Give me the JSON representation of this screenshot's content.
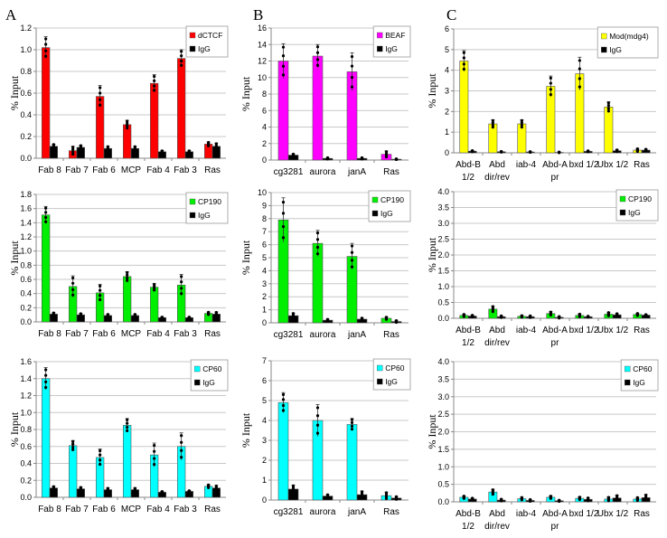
{
  "chart_data": [
    {
      "type": "bar",
      "panel_label": "A",
      "ylabel": "% Input",
      "ylim": [
        0,
        1.2
      ],
      "yticks": [
        "0.0",
        "0.2",
        "0.4",
        "0.6",
        "0.8",
        "1.0",
        "1.2"
      ],
      "categories": [
        "Fab 8",
        "Fab 7",
        "Fab 6",
        "MCP",
        "Fab 4",
        "Fab 3",
        "Ras"
      ],
      "series": [
        {
          "name": "dCTCF",
          "color": "#ff0000",
          "values": [
            1.02,
            0.07,
            0.57,
            0.31,
            0.69,
            0.92,
            0.13
          ],
          "errors": [
            0.1,
            0.04,
            0.1,
            0.04,
            0.08,
            0.08,
            0.02
          ]
        },
        {
          "name": "IgG",
          "color": "#000000",
          "values": [
            0.11,
            0.1,
            0.09,
            0.09,
            0.06,
            0.06,
            0.11
          ],
          "errors": [
            0.02,
            0.02,
            0.02,
            0.02,
            0.01,
            0.01,
            0.03
          ]
        }
      ],
      "legend": "top-right",
      "grid": true
    },
    {
      "type": "bar",
      "panel_label": "B",
      "ylabel": "% Input",
      "ylim": [
        0,
        16
      ],
      "yticks": [
        "0",
        "2",
        "4",
        "6",
        "8",
        "10",
        "12",
        "14",
        "16"
      ],
      "categories": [
        "cg3281",
        "aurora",
        "janA",
        "Ras"
      ],
      "series": [
        {
          "name": "BEAF",
          "color": "#ff00ff",
          "values": [
            12.0,
            12.6,
            10.7,
            0.7
          ],
          "errors": [
            2.1,
            1.4,
            2.3,
            0.4
          ]
        },
        {
          "name": "IgG",
          "color": "#000000",
          "values": [
            0.6,
            0.2,
            0.2,
            0.1
          ],
          "errors": [
            0.15,
            0.1,
            0.1,
            0.05
          ]
        }
      ],
      "legend": "top-right",
      "grid": true
    },
    {
      "type": "bar",
      "panel_label": "C",
      "ylabel": "% Input",
      "ylim": [
        0,
        6
      ],
      "yticks": [
        "0",
        "1",
        "2",
        "3",
        "4",
        "5",
        "6"
      ],
      "categories": [
        "Abd-B\n1/2",
        "Abd\ndir/rev",
        "iab-4",
        "Abd-A\npr",
        "bxd 1/2",
        "Ubx 1/2",
        "Ras"
      ],
      "series": [
        {
          "name": "Mod(mdg4)",
          "color": "#ffff00",
          "values": [
            4.45,
            1.4,
            1.4,
            3.22,
            3.83,
            2.22,
            0.13
          ],
          "errors": [
            0.5,
            0.2,
            0.2,
            0.5,
            0.8,
            0.25,
            0.08
          ]
        },
        {
          "name": "IgG",
          "color": "#000000",
          "values": [
            0.08,
            0.05,
            0.04,
            0.02,
            0.07,
            0.1,
            0.13
          ],
          "errors": [
            0.03,
            0.02,
            0.02,
            0.02,
            0.03,
            0.05,
            0.05
          ]
        }
      ],
      "legend": "top-right",
      "grid": true
    },
    {
      "type": "bar",
      "ylabel": "% Input",
      "ylim": [
        0,
        1.8
      ],
      "yticks": [
        "0.0",
        "0.2",
        "0.4",
        "0.6",
        "0.8",
        "1.0",
        "1.2",
        "1.4",
        "1.6",
        "1.8"
      ],
      "categories": [
        "Fab 8",
        "Fab 7",
        "Fab 6",
        "MCP",
        "Fab 4",
        "Fab 3",
        "Ras"
      ],
      "series": [
        {
          "name": "CP190",
          "color": "#00ee00",
          "values": [
            1.51,
            0.5,
            0.41,
            0.64,
            0.49,
            0.52,
            0.12
          ],
          "errors": [
            0.12,
            0.15,
            0.12,
            0.07,
            0.05,
            0.15,
            0.02
          ]
        },
        {
          "name": "IgG",
          "color": "#000000",
          "values": [
            0.11,
            0.1,
            0.09,
            0.09,
            0.06,
            0.06,
            0.11
          ],
          "errors": [
            0.02,
            0.02,
            0.02,
            0.02,
            0.01,
            0.01,
            0.03
          ]
        }
      ],
      "legend": "top-right",
      "grid": true
    },
    {
      "type": "bar",
      "ylabel": "% Input",
      "ylim": [
        0,
        10
      ],
      "yticks": [
        "0",
        "1",
        "2",
        "3",
        "4",
        "5",
        "6",
        "7",
        "8",
        "9",
        "10"
      ],
      "categories": [
        "cg3281",
        "aurora",
        "janA",
        "Ras"
      ],
      "series": [
        {
          "name": "CP190",
          "color": "#00ee00",
          "values": [
            7.9,
            6.1,
            5.1,
            0.35
          ],
          "errors": [
            1.7,
            1.0,
            1.0,
            0.1
          ]
        },
        {
          "name": "IgG",
          "color": "#000000",
          "values": [
            0.55,
            0.2,
            0.28,
            0.1
          ],
          "errors": [
            0.2,
            0.08,
            0.1,
            0.08
          ]
        }
      ],
      "legend": "top-right",
      "grid": true
    },
    {
      "type": "bar",
      "ylabel": "% Input",
      "ylim": [
        0,
        4
      ],
      "yticks": [
        "0.0",
        "0.5",
        "1.0",
        "1.5",
        "2.0",
        "2.5",
        "3.0",
        "3.5",
        "4.0"
      ],
      "categories": [
        "Abd-B\n1/2",
        "Abd\ndir/rev",
        "iab-4",
        "Abd-A\npr",
        "bxd 1/2",
        "Ubx 1/2",
        "Ras"
      ],
      "series": [
        {
          "name": "CP190",
          "color": "#00ee00",
          "values": [
            0.09,
            0.29,
            0.06,
            0.15,
            0.09,
            0.13,
            0.12
          ],
          "errors": [
            0.04,
            0.1,
            0.03,
            0.06,
            0.05,
            0.06,
            0.04
          ]
        },
        {
          "name": "IgG",
          "color": "#000000",
          "values": [
            0.07,
            0.05,
            0.05,
            0.03,
            0.05,
            0.11,
            0.1
          ],
          "errors": [
            0.03,
            0.03,
            0.03,
            0.03,
            0.02,
            0.04,
            0.02
          ]
        }
      ],
      "legend": "top-right",
      "grid": true
    },
    {
      "type": "bar",
      "ylabel": "% Input",
      "ylim": [
        0,
        1.6
      ],
      "yticks": [
        "0.0",
        "0.2",
        "0.4",
        "0.6",
        "0.8",
        "1.0",
        "1.2",
        "1.4",
        "1.6"
      ],
      "categories": [
        "Fab 8",
        "Fab 7",
        "Fab 6",
        "MCP",
        "Fab 4",
        "Fab 3",
        "Ras"
      ],
      "series": [
        {
          "name": "CP60",
          "color": "#00ffff",
          "values": [
            1.4,
            0.61,
            0.47,
            0.85,
            0.5,
            0.6,
            0.13
          ],
          "errors": [
            0.13,
            0.06,
            0.1,
            0.08,
            0.14,
            0.16,
            0.02
          ]
        },
        {
          "name": "IgG",
          "color": "#000000",
          "values": [
            0.11,
            0.1,
            0.09,
            0.09,
            0.06,
            0.07,
            0.11
          ],
          "errors": [
            0.02,
            0.02,
            0.02,
            0.02,
            0.01,
            0.01,
            0.03
          ]
        }
      ],
      "legend": "top-right",
      "grid": true
    },
    {
      "type": "bar",
      "ylabel": "% Input",
      "ylim": [
        0,
        7
      ],
      "yticks": [
        "0",
        "1",
        "2",
        "3",
        "4",
        "5",
        "6",
        "7"
      ],
      "categories": [
        "cg3281",
        "aurora",
        "janA",
        "Ras"
      ],
      "series": [
        {
          "name": "CP60",
          "color": "#00ffff",
          "values": [
            4.9,
            4.0,
            3.8,
            0.22
          ],
          "errors": [
            0.5,
            0.8,
            0.3,
            0.18
          ]
        },
        {
          "name": "IgG",
          "color": "#000000",
          "values": [
            0.55,
            0.2,
            0.27,
            0.1
          ],
          "errors": [
            0.2,
            0.08,
            0.18,
            0.08
          ]
        }
      ],
      "legend": "top-right",
      "grid": true
    },
    {
      "type": "bar",
      "ylabel": "% Input",
      "ylim": [
        0,
        4
      ],
      "yticks": [
        "0.0",
        "0.5",
        "1.0",
        "1.5",
        "2.0",
        "2.5",
        "3.0",
        "3.5",
        "4.0"
      ],
      "categories": [
        "Abd-B\n1/2",
        "Abd\ndir/rev",
        "iab-4",
        "Abd-A\npr",
        "bxd 1/2",
        "Ubx 1/2",
        "Ras"
      ],
      "series": [
        {
          "name": "CP60",
          "color": "#00ffff",
          "values": [
            0.13,
            0.28,
            0.09,
            0.13,
            0.1,
            0.08,
            0.08
          ],
          "errors": [
            0.04,
            0.08,
            0.04,
            0.04,
            0.04,
            0.06,
            0.05
          ]
        },
        {
          "name": "IgG",
          "color": "#000000",
          "values": [
            0.08,
            0.05,
            0.04,
            0.03,
            0.07,
            0.11,
            0.12
          ],
          "errors": [
            0.03,
            0.03,
            0.03,
            0.02,
            0.05,
            0.08,
            0.09
          ]
        }
      ],
      "legend": "top-right",
      "grid": true
    }
  ]
}
